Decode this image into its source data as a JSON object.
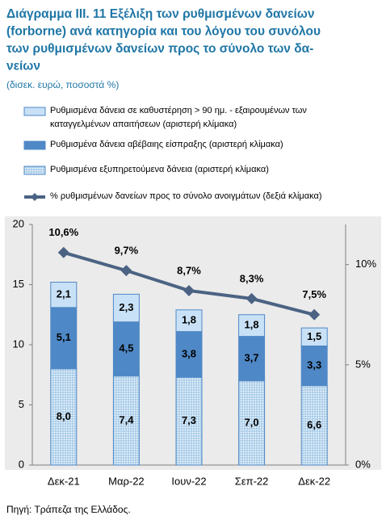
{
  "chart_data": {
    "type": "bar",
    "stacked": true,
    "title": [
      "Διάγραμμα ΙΙΙ. 11 Εξέλιξη των ρυθμισμένων δανείων",
      "(forborne) ανά κατηγορία και του λόγου του συνόλου",
      "των ρυθμισμένων δανείων προς το σύνολο των δα-",
      "νείων"
    ],
    "subtitle": "(δισεκ. ευρώ, ποσοστά %)",
    "source": "Πηγή: Τράπεζα της Ελλάδος.",
    "categories": [
      "Δεκ-21",
      "Μαρ-22",
      "Ιουν-22",
      "Σεπ-22",
      "Δεκ-22"
    ],
    "series": [
      {
        "name": "Ρυθμισμένα εξυπηρετούμενα δάνεια (αριστερή κλίμακα)",
        "color": "#a9cde9",
        "pattern": "dots",
        "values": [
          8.0,
          7.4,
          7.3,
          7.0,
          6.6
        ],
        "value_labels": [
          "8,0",
          "7,4",
          "7,3",
          "7,0",
          "6,6"
        ]
      },
      {
        "name": "Ρυθμισμένα δάνεια αβέβαιης είσπραξης (αριστερή κλίμακα)",
        "color": "#4f88c6",
        "values": [
          5.1,
          4.5,
          3.8,
          3.7,
          3.3
        ],
        "value_labels": [
          "5,1",
          "4,5",
          "3,8",
          "3,7",
          "3,3"
        ]
      },
      {
        "name": "Ρυθμισμένα δάνεια σε καθυστέρηση > 90 ημ. - εξαιρουμένων των καταγγελμένων απαιτήσεων (αριστερή κλίμακα)",
        "color": "#c9e1f6",
        "values": [
          2.1,
          2.3,
          1.8,
          1.8,
          1.5
        ],
        "value_labels": [
          "2,1",
          "2,3",
          "1,8",
          "1,8",
          "1,5"
        ]
      },
      {
        "name": "% ρυθμισμένων δανείων προς το σύνολο ανοιγμάτων (δεξιά κλίμακα)",
        "color": "#4b6383",
        "type": "line",
        "axis": "y2",
        "values": [
          10.6,
          9.7,
          8.7,
          8.3,
          7.5
        ],
        "value_labels": [
          "10,6%",
          "9,7%",
          "8,7%",
          "8,3%",
          "7,5%"
        ]
      }
    ],
    "ylim": [
      0,
      20
    ],
    "yticks": [
      0,
      5,
      10,
      15,
      20
    ],
    "y2lim": [
      0,
      12
    ],
    "y2ticks": [
      {
        "value": 0,
        "label": "0%"
      },
      {
        "value": 5,
        "label": "5%"
      },
      {
        "value": 10,
        "label": "10%"
      }
    ]
  }
}
